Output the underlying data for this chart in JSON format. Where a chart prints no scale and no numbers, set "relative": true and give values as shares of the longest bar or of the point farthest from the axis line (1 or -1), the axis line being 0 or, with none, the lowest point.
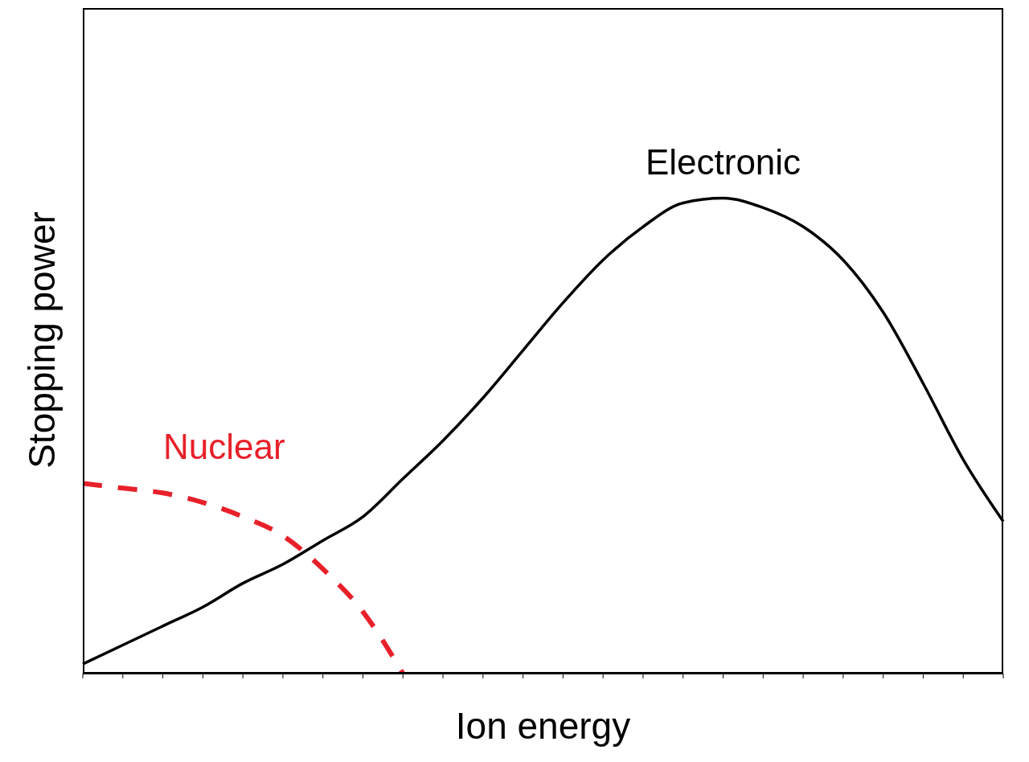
{
  "chart_data": {
    "type": "line",
    "relative": true,
    "xlabel": "Ion energy",
    "ylabel": "Stopping power",
    "marker": "none",
    "categories": [
      null,
      null,
      null,
      null,
      null,
      null,
      null,
      null,
      null,
      null,
      null,
      null,
      null,
      null,
      null,
      null,
      null,
      null,
      null,
      null,
      null,
      null,
      null,
      null
    ],
    "series": [
      {
        "name": "Electronic",
        "color": "#000000",
        "line_style": "solid",
        "values": [
          0.02,
          0.06,
          0.1,
          0.14,
          0.19,
          0.23,
          0.28,
          0.33,
          0.41,
          0.49,
          0.58,
          0.68,
          0.78,
          0.87,
          0.94,
          0.99,
          1,
          0.98,
          0.94,
          0.87,
          0.76,
          0.61,
          0.45,
          0.32
        ]
      },
      {
        "name": "Nuclear",
        "color": "#e8202a",
        "line_style": "dashed",
        "values": [
          0.4,
          0.39,
          0.38,
          0.36,
          0.33,
          0.29,
          0.22,
          0.13,
          0.0,
          null,
          null,
          null,
          null,
          null,
          null,
          null,
          null,
          null,
          null,
          null,
          null,
          null,
          null,
          null
        ]
      }
    ]
  }
}
